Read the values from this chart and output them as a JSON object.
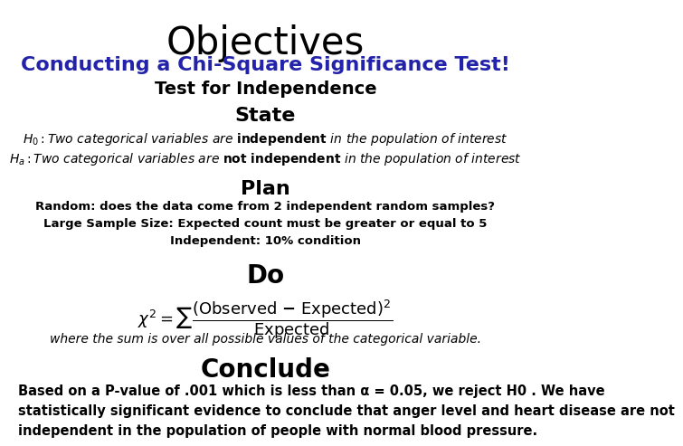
{
  "title": "Objectives",
  "subtitle": "Conducting a Chi-Square Significance Test!",
  "test_type": "Test for Independence",
  "state_header": "State",
  "h0_line": "H₀: Two categorical variables are independent in the population of interest",
  "ha_line": "Hₐ: Two categorical variables are not independent in the population of interest",
  "plan_header": "Plan",
  "plan_line1": "Random: does the data come from 2 independent random samples?",
  "plan_line2": "Large Sample Size: Expected count must be greater or equal to 5",
  "plan_line3": "Independent: 10% condition",
  "do_header": "Do",
  "formula_note": "where the sum is over all possible values of the categorical variable.",
  "conclude_header": "Conclude",
  "conclude_text": "Based on a P-value of .001 which is less than α = 0.05, we reject H0 . We have\nstatistically significant evidence to conclude that anger level and heart disease are not\nindependent in the population of people with normal blood pressure.",
  "title_color": "#000000",
  "subtitle_color": "#2222aa",
  "header_color": "#000000",
  "body_color": "#000000",
  "bg_color": "#ffffff"
}
